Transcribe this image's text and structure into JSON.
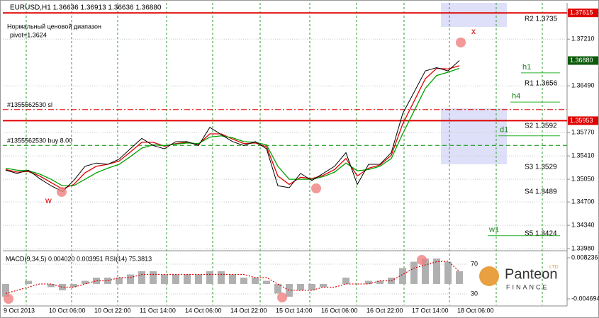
{
  "chart_data": [
    {
      "type": "line",
      "title": "EURUSD,H1  1.36636 1.36913 1.36636 1.36880",
      "subtitle": "Нормальный ценовой диапазон",
      "annotation": "pivot=1.3624",
      "categories": [
        "9 Oct 2013",
        null,
        null,
        null,
        "10 Oct 06:00",
        null,
        null,
        null,
        "10 Oct 22:00",
        null,
        null,
        null,
        "11 Oct 14:00",
        null,
        null,
        null,
        "14 Oct 06:00",
        null,
        null,
        null,
        "14 Oct 22:00",
        null,
        null,
        null,
        "15 Oct 14:00",
        null,
        null,
        null,
        "16 Oct 06:00",
        null,
        null,
        null,
        "16 Oct 22:00",
        null,
        null,
        null,
        "17 Oct 14:00",
        null,
        null,
        null,
        "18 Oct 06:00"
      ],
      "series": [
        {
          "color": "#000000",
          "values": [
            1.3519,
            1.3514,
            1.3519,
            1.3506,
            1.3495,
            1.3486,
            1.3503,
            1.3525,
            1.353,
            1.3528,
            1.3536,
            1.3552,
            1.3568,
            1.3557,
            1.3552,
            1.3563,
            1.3563,
            1.3557,
            1.3585,
            1.3574,
            1.3563,
            1.3557,
            1.3563,
            1.3552,
            1.3495,
            1.3492,
            1.3514,
            1.3503,
            1.3514,
            1.3525,
            1.3546,
            1.3497,
            1.3528,
            1.3528,
            1.3546,
            1.3606,
            1.3639,
            1.3672,
            1.3677,
            1.3672,
            1.3688
          ]
        },
        {
          "color": "#e00000",
          "values": [
            1.352,
            1.3516,
            1.3517,
            1.351,
            1.35,
            1.349,
            1.3497,
            1.3515,
            1.3525,
            1.3528,
            1.3533,
            1.3547,
            1.3562,
            1.3562,
            1.3556,
            1.356,
            1.3562,
            1.3559,
            1.3575,
            1.3575,
            1.3567,
            1.356,
            1.3561,
            1.3555,
            1.351,
            1.3497,
            1.3508,
            1.3506,
            1.3511,
            1.352,
            1.3537,
            1.351,
            1.3522,
            1.3527,
            1.3542,
            1.359,
            1.3625,
            1.366,
            1.3676,
            1.3675,
            1.368
          ]
        },
        {
          "color": "#00a000",
          "values": [
            1.3522,
            1.3519,
            1.3518,
            1.3513,
            1.3505,
            1.3495,
            1.3495,
            1.3505,
            1.3515,
            1.3522,
            1.3528,
            1.354,
            1.3553,
            1.3558,
            1.3557,
            1.3559,
            1.3561,
            1.356,
            1.357,
            1.3572,
            1.3569,
            1.3563,
            1.3562,
            1.3558,
            1.3525,
            1.3505,
            1.3505,
            1.3505,
            1.3509,
            1.3516,
            1.353,
            1.3518,
            1.352,
            1.3525,
            1.3537,
            1.3575,
            1.361,
            1.3645,
            1.3665,
            1.367,
            1.3676
          ]
        }
      ],
      "ylim": [
        1.3397,
        1.3777
      ],
      "yticks": [
        {
          "value": 1.3721,
          "label": "1.37210"
        },
        {
          "value": 1.3649,
          "label": "1.36490"
        },
        {
          "value": 1.3577,
          "label": "1.35770"
        },
        {
          "value": 1.3541,
          "label": "1.35410"
        },
        {
          "value": 1.3505,
          "label": "1.35050"
        },
        {
          "value": 1.347,
          "label": "1.34700"
        },
        {
          "value": 1.3434,
          "label": "1.34340"
        },
        {
          "value": 1.3398,
          "label": "1.33980"
        }
      ],
      "grid": true,
      "red_levels": [
        1.37615,
        1.35953
      ],
      "last_price": {
        "value": 1.3688,
        "label": "1.36880"
      },
      "orders": [
        {
          "name": "#1355562530 sl",
          "value": 1.36124,
          "color": "#e00000"
        },
        {
          "name": "#1355562530 buy 8.00",
          "value": 1.35573,
          "color": "#009000"
        }
      ],
      "pivots": [
        {
          "label": "h1",
          "value": 1.3669
        },
        {
          "label": "h4",
          "value": 1.3624
        },
        {
          "label": "d1",
          "value": 1.3572
        },
        {
          "label": "w1",
          "value": 1.3418
        }
      ],
      "level_labels": [
        "R2 1.3735",
        "R1 1.3656",
        "S2 1.3592",
        "S3 1.3529",
        "S4 1.3489",
        "S5 1.3424"
      ],
      "markers": [
        "x",
        "w"
      ]
    },
    {
      "type": "bar",
      "title": "MACD(9,34,5) 0.004020 0.003951  RSI(14) 75.3813",
      "series": [
        {
          "type": "bar",
          "color": "#b0b0b0",
          "values": [
            -0.004,
            0.0,
            0.001,
            0.0,
            -0.001,
            -0.002,
            -0.001,
            0.001,
            0.002,
            0.002,
            0.002,
            0.003,
            0.004,
            0.004,
            0.003,
            0.003,
            0.003,
            0.003,
            0.004,
            0.004,
            0.003,
            0.002,
            0.002,
            0.001,
            -0.003,
            -0.004,
            -0.002,
            -0.002,
            -0.001,
            0.0,
            0.002,
            0.0,
            0.001,
            0.001,
            0.002,
            0.005,
            0.007,
            0.008,
            0.008,
            0.007,
            0.00402
          ]
        },
        {
          "type": "line",
          "color": "#e00000",
          "values": [
            -0.003,
            -0.002,
            -0.001,
            0.0,
            0.0,
            -0.001,
            -0.001,
            0.0,
            0.001,
            0.001,
            0.002,
            0.002,
            0.003,
            0.003,
            0.003,
            0.003,
            0.003,
            0.003,
            0.003,
            0.003,
            0.003,
            0.003,
            0.002,
            0.002,
            0.0,
            -0.002,
            -0.002,
            -0.002,
            -0.001,
            -0.001,
            0.0,
            0.0,
            0.0,
            0.001,
            0.001,
            0.003,
            0.005,
            0.006,
            0.007,
            0.0072,
            0.003951
          ]
        }
      ],
      "ylim": [
        -0.0067,
        0.0098
      ],
      "yticks": [
        0.008236,
        -0.004694
      ],
      "y2lim": [
        14.8,
        85.2
      ],
      "y2ticks": [
        30,
        70
      ]
    }
  ],
  "logo": {
    "name": "Panteon",
    "sub": "FINANCE",
    "badge": "LTD"
  }
}
